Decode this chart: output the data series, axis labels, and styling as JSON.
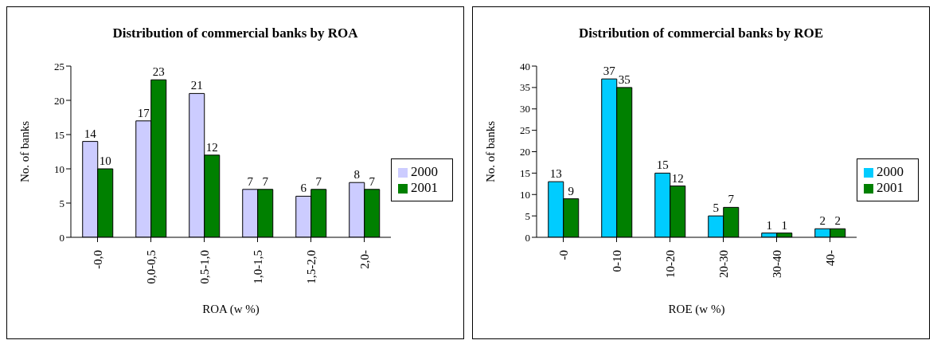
{
  "chart_data": [
    {
      "type": "bar",
      "title": "Distribution of commercial banks by ROA",
      "xlabel": "ROA (w %)",
      "ylabel": "No. of banks",
      "categories": [
        "-0,0",
        "0,0-0,5",
        "0,5-1,0",
        "1,0-1,5",
        "1,5-2,0",
        "2,0-"
      ],
      "series": [
        {
          "name": "2000",
          "color": "#ccccff",
          "values": [
            14,
            17,
            21,
            7,
            6,
            8
          ]
        },
        {
          "name": "2001",
          "color": "#008000",
          "values": [
            10,
            23,
            12,
            7,
            7,
            7
          ]
        }
      ],
      "ylim": [
        0,
        25
      ],
      "yticks": [
        0,
        5,
        10,
        15,
        20,
        25
      ],
      "data_labels": true,
      "legend": "right"
    },
    {
      "type": "bar",
      "title": "Distribution of commercial banks by ROE",
      "xlabel": "ROE (w %)",
      "ylabel": "No. of banks",
      "categories": [
        "-0",
        "0-10",
        "10-20",
        "20-30",
        "30-40",
        "40-"
      ],
      "series": [
        {
          "name": "2000",
          "color": "#00ccff",
          "values": [
            13,
            37,
            15,
            5,
            1,
            2
          ]
        },
        {
          "name": "2001",
          "color": "#008000",
          "values": [
            9,
            35,
            12,
            7,
            1,
            2
          ]
        }
      ],
      "ylim": [
        0,
        40
      ],
      "yticks": [
        0,
        5,
        10,
        15,
        20,
        25,
        30,
        35,
        40
      ],
      "data_labels": true,
      "legend": "right"
    }
  ]
}
